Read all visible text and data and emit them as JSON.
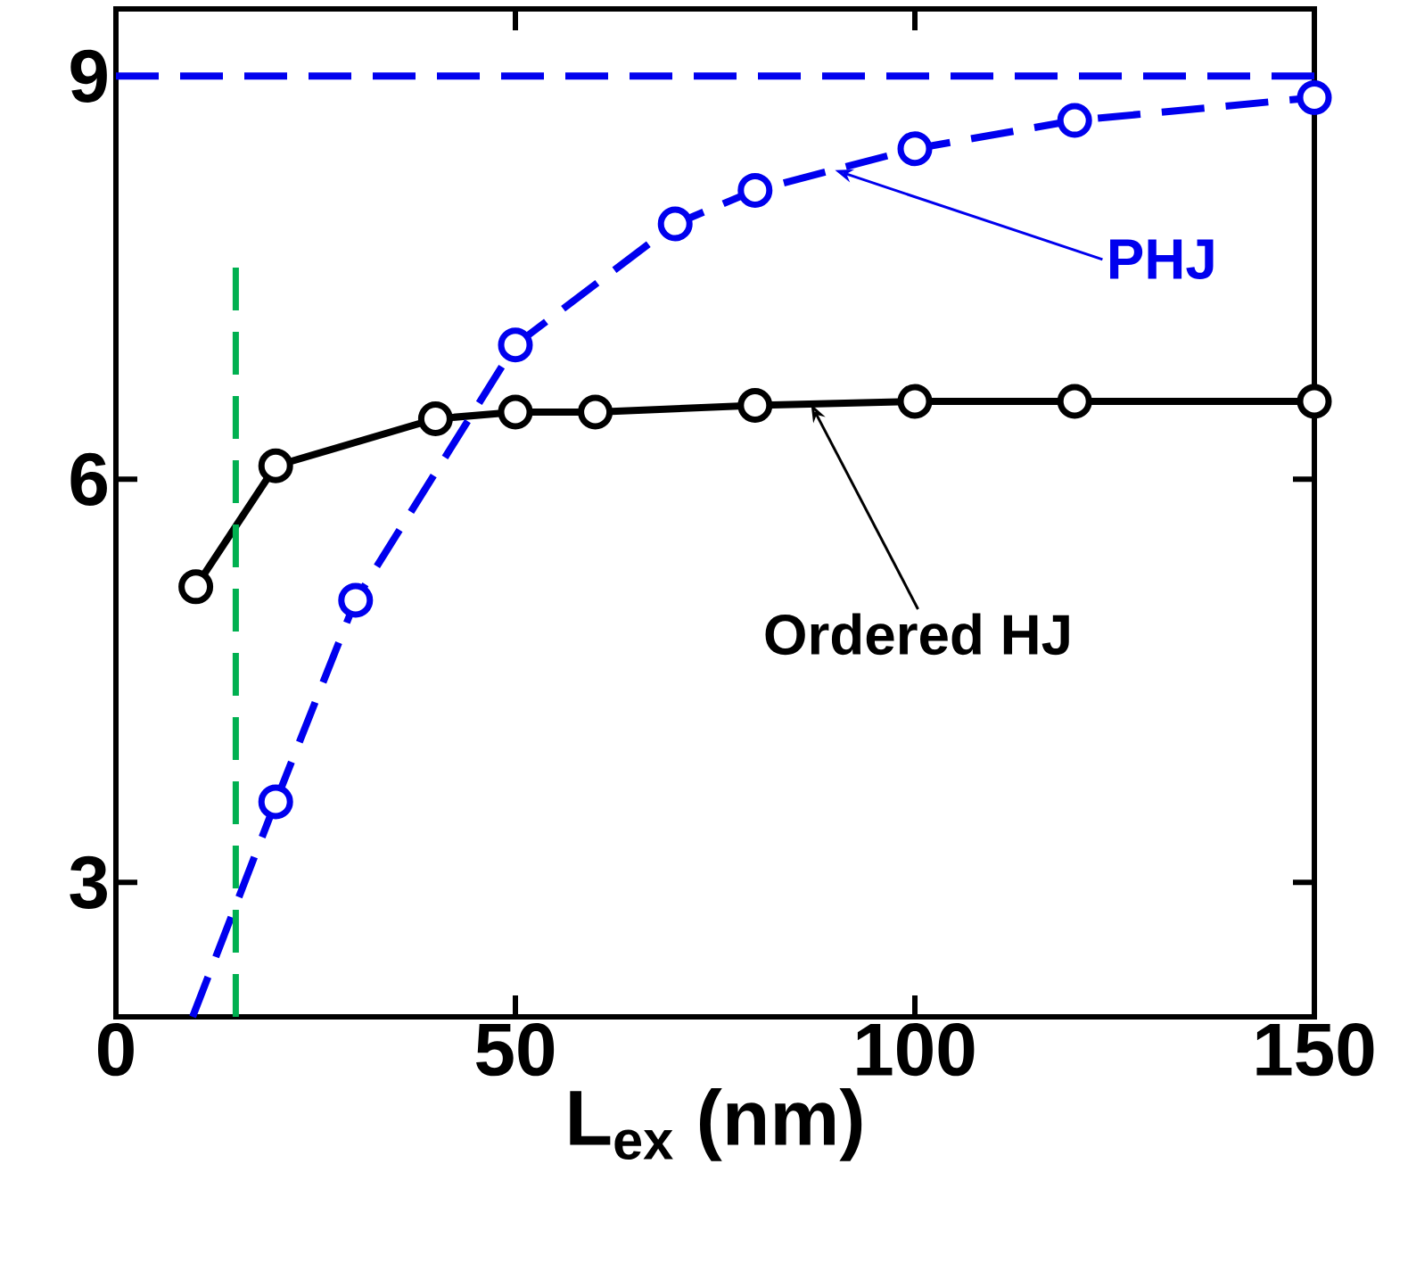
{
  "chart_data": {
    "type": "line",
    "xlabel": "L$_{ex}$ (nm)",
    "xlim": [
      0,
      150
    ],
    "ylim": [
      2,
      9.5
    ],
    "xticks": [
      0,
      50,
      100,
      150
    ],
    "yticks": [
      3,
      6,
      9
    ],
    "grid": false,
    "series": [
      {
        "color": "#000000",
        "line_style": "solid",
        "marker": "circle",
        "x": [
          10,
          20,
          40,
          50,
          60,
          80,
          100,
          120,
          150
        ],
        "values": [
          5.2,
          6.1,
          6.45,
          6.5,
          6.5,
          6.55,
          6.58,
          6.58,
          6.58
        ]
      },
      {
        "color": "#0000ee",
        "line_style": "dashed",
        "marker": "circle",
        "x": [
          20,
          30,
          50,
          70,
          80,
          100,
          120,
          150
        ],
        "values": [
          3.6,
          5.1,
          7.0,
          7.9,
          8.15,
          8.46,
          8.67,
          8.84
        ]
      },
      {
        "color": "#0000ee",
        "line_style": "dashed",
        "marker": "none",
        "x": [
          9.6,
          20
        ],
        "values": [
          2.0,
          3.6
        ]
      }
    ],
    "ref_lines": [
      {
        "axis": "y",
        "value": 9,
        "color": "#0000ee",
        "line_style": "dashed"
      },
      {
        "axis": "x",
        "value": 15,
        "color": "#00b050",
        "line_style": "dashed"
      }
    ],
    "annotations": [
      {
        "text": "PHJ",
        "x": 90,
        "y": 8.3
      },
      {
        "text": "Ordered HJ",
        "x": 87,
        "y": 6.56
      }
    ]
  }
}
